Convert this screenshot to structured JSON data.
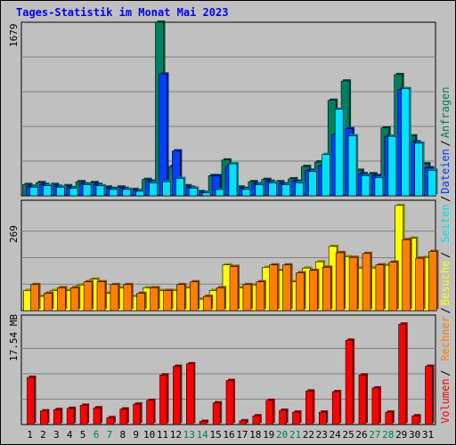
{
  "title": "Tages-Statistik im Monat Mai 2023",
  "chart_data": [
    {
      "type": "bar",
      "panel": "top",
      "y_max_label": "1679",
      "ylim": [
        0,
        1679
      ],
      "categories": [
        "1",
        "2",
        "3",
        "4",
        "5",
        "6",
        "7",
        "8",
        "9",
        "10",
        "11",
        "12",
        "13",
        "14",
        "15",
        "16",
        "17",
        "18",
        "19",
        "20",
        "21",
        "22",
        "23",
        "24",
        "25",
        "26",
        "27",
        "28",
        "29",
        "30",
        "31"
      ],
      "weekend_days": [
        "6",
        "7",
        "13",
        "14",
        "20",
        "21",
        "27",
        "28"
      ],
      "series": [
        {
          "name": "Anfragen",
          "color": "#008060",
          "values": [
            109,
            127,
            109,
            97,
            136,
            127,
            84,
            84,
            61,
            158,
            1679,
            284,
            97,
            40,
            195,
            346,
            84,
            136,
            158,
            136,
            164,
            284,
            327,
            924,
            1110,
            246,
            213,
            657,
            1172,
            579,
            309
          ]
        },
        {
          "name": "Dateien",
          "color": "#0040ff",
          "values": [
            91,
            109,
            91,
            78,
            115,
            109,
            71,
            71,
            50,
            140,
            1177,
            434,
            82,
            33,
            194,
            289,
            71,
            115,
            140,
            115,
            140,
            246,
            289,
            591,
            648,
            213,
            195,
            575,
            1029,
            521,
            270
          ]
        },
        {
          "name": "Seiten",
          "color": "#00e0ff",
          "values": [
            82,
            97,
            82,
            71,
            106,
            97,
            61,
            61,
            44,
            125,
            136,
            167,
            73,
            29,
            61,
            309,
            61,
            106,
            125,
            106,
            125,
            234,
            399,
            837,
            579,
            195,
            175,
            575,
            1037,
            509,
            246
          ]
        }
      ],
      "legend": [
        "Anfragen",
        "Dateien",
        "Seiten"
      ]
    },
    {
      "type": "bar",
      "panel": "middle",
      "y_max_label": "269",
      "ylim": [
        0,
        269
      ],
      "categories": [
        "1",
        "2",
        "3",
        "4",
        "5",
        "6",
        "7",
        "8",
        "9",
        "10",
        "11",
        "12",
        "13",
        "14",
        "15",
        "16",
        "17",
        "18",
        "19",
        "20",
        "21",
        "22",
        "23",
        "24",
        "25",
        "26",
        "27",
        "28",
        "29",
        "30",
        "31"
      ],
      "series": [
        {
          "name": "Besuche",
          "color": "#ffff00",
          "values": [
            51,
            36,
            51,
            51,
            65,
            80,
            44,
            58,
            36,
            58,
            51,
            51,
            58,
            29,
            51,
            116,
            58,
            65,
            110,
            102,
            73,
            108,
            124,
            163,
            137,
            108,
            108,
            115,
            267,
            184,
            135
          ]
        },
        {
          "name": "Rechner",
          "color": "#ff8000",
          "values": [
            66,
            44,
            58,
            58,
            73,
            73,
            66,
            66,
            44,
            58,
            51,
            66,
            73,
            36,
            58,
            112,
            66,
            73,
            116,
            116,
            96,
            102,
            110,
            147,
            135,
            145,
            116,
            123,
            180,
            133,
            150
          ]
        }
      ],
      "legend": [
        "Besuche",
        "Rechner"
      ]
    },
    {
      "type": "bar",
      "panel": "bottom",
      "y_max_label": "17.54 MB",
      "ylim": [
        0,
        17.54
      ],
      "categories": [
        "1",
        "2",
        "3",
        "4",
        "5",
        "6",
        "7",
        "8",
        "9",
        "10",
        "11",
        "12",
        "13",
        "14",
        "15",
        "16",
        "17",
        "18",
        "19",
        "20",
        "21",
        "22",
        "23",
        "24",
        "25",
        "26",
        "27",
        "28",
        "29",
        "30",
        "31"
      ],
      "series": [
        {
          "name": "Volumen",
          "color": "#ff0000",
          "values": [
            8.15,
            2.36,
            2.58,
            2.79,
            3.32,
            2.89,
            1.18,
            2.68,
            3.53,
            4.18,
            8.57,
            10.07,
            10.5,
            0.54,
            3.75,
            7.6,
            0.64,
            1.5,
            4.18,
            2.46,
            2.14,
            5.79,
            2.14,
            5.68,
            14.57,
            8.57,
            6.32,
            2.14,
            17.35,
            1.5,
            10.07
          ]
        }
      ],
      "legend": [
        "Volumen"
      ]
    }
  ],
  "legend_labels": [
    {
      "text": "Anfragen",
      "color": "#008060"
    },
    {
      "text": "Dateien",
      "color": "#0040ff"
    },
    {
      "text": "Seiten",
      "color": "#00e0ff"
    },
    {
      "text": "Besuche",
      "color": "#ffff00"
    },
    {
      "text": "Rechner",
      "color": "#ff8000"
    },
    {
      "text": "Volumen",
      "color": "#ff0000"
    }
  ],
  "legend_separator": "/",
  "colors": {
    "title": "#0000ff",
    "background": "#c0c0c0",
    "gridline": "#808080",
    "day_label": "#000000",
    "weekend_label": "#008040"
  }
}
